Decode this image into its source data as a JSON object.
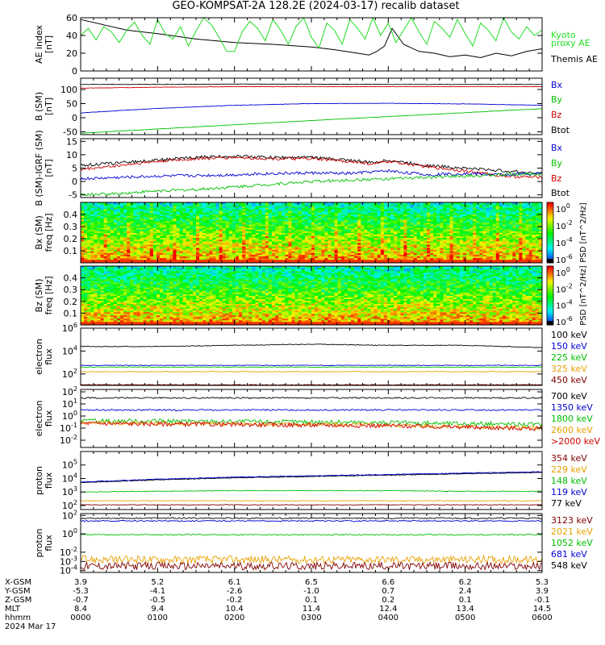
{
  "title": "GEO-KOMPSAT-2A 128.2E (2024-03-17) recalib dataset",
  "colors": {
    "black": "#000000",
    "red": "#d00000",
    "blue": "#0000d0",
    "green": "#00c000",
    "lightgreen": "#22dd22",
    "orange": "#e8a000",
    "darkred": "#800000",
    "mgreen": "#00b000"
  },
  "chart_data": [
    {
      "id": "ae",
      "type": "line",
      "ylabel": [
        "AE index",
        "[nT]"
      ],
      "ylim": [
        0,
        60
      ],
      "yticks": [
        "0",
        "20",
        "40",
        "60"
      ],
      "log": false,
      "legend": [
        {
          "name": "Kyoto proxy AE",
          "lines": [
            "Kyoto",
            "proxy AE"
          ],
          "color": "#22dd22"
        },
        {
          "name": "Themis AE",
          "lines": [
            "Themis AE"
          ],
          "color": "#000000"
        }
      ],
      "series": [
        {
          "name": "Themis AE",
          "color": "#000000",
          "x": [
            0,
            0.3,
            0.6,
            1.0,
            1.5,
            2.0,
            2.5,
            3.0,
            3.3,
            3.6,
            3.75,
            3.85,
            3.95,
            4.05,
            4.2,
            4.4,
            4.6,
            4.8,
            5.0,
            5.2,
            5.4,
            5.6,
            5.8,
            6.0
          ],
          "y": [
            58,
            52,
            46,
            42,
            36,
            32,
            30,
            27,
            24,
            20,
            18,
            22,
            28,
            48,
            30,
            22,
            20,
            16,
            18,
            15,
            20,
            17,
            22,
            25
          ]
        },
        {
          "name": "Kyoto proxy AE",
          "color": "#22dd22",
          "x": [
            0,
            0.1,
            0.2,
            0.3,
            0.4,
            0.5,
            0.6,
            0.7,
            0.8,
            0.9,
            1.0,
            1.1,
            1.2,
            1.3,
            1.4,
            1.5,
            1.6,
            1.7,
            1.8,
            1.9,
            2.0,
            2.1,
            2.2,
            2.3,
            2.4,
            2.5,
            2.6,
            2.7,
            2.8,
            2.9,
            3.0,
            3.1,
            3.2,
            3.3,
            3.4,
            3.5,
            3.6,
            3.7,
            3.8,
            3.9,
            4.0,
            4.1,
            4.2,
            4.3,
            4.4,
            4.5,
            4.6,
            4.7,
            4.8,
            4.9,
            5.0,
            5.1,
            5.2,
            5.3,
            5.4,
            5.5,
            5.6,
            5.7,
            5.8,
            5.9,
            6.0
          ],
          "y": [
            40,
            48,
            35,
            50,
            44,
            32,
            46,
            55,
            40,
            30,
            58,
            42,
            36,
            50,
            28,
            45,
            60,
            52,
            38,
            22,
            22,
            44,
            56,
            48,
            34,
            58,
            46,
            30,
            50,
            60,
            38,
            26,
            54,
            46,
            30,
            58,
            48,
            36,
            60,
            40,
            54,
            32,
            46,
            60,
            44,
            30,
            56,
            48,
            38,
            58,
            42,
            28,
            54,
            46,
            34,
            60,
            44,
            36,
            50,
            40,
            46
          ]
        }
      ]
    },
    {
      "id": "bsm",
      "type": "line",
      "ylabel": [
        "B (SM)",
        "[nT]"
      ],
      "ylim": [
        -60,
        140
      ],
      "yticks": [
        "-50",
        "0",
        "50",
        "100"
      ],
      "log": false,
      "legend": [
        {
          "name": "Bx",
          "lines": [
            "Bx"
          ],
          "color": "#0000d0"
        },
        {
          "name": "By",
          "lines": [
            "By"
          ],
          "color": "#00c000"
        },
        {
          "name": "Bz",
          "lines": [
            "Bz"
          ],
          "color": "#d00000"
        },
        {
          "name": "Btot",
          "lines": [
            "Btot"
          ],
          "color": "#000000"
        }
      ],
      "series": [
        {
          "name": "Btot",
          "color": "#000000",
          "x": [
            0,
            1,
            2,
            3,
            4,
            5,
            6
          ],
          "y": [
            118,
            118,
            119,
            119,
            118,
            118,
            118
          ]
        },
        {
          "name": "Bz",
          "color": "#d00000",
          "x": [
            0,
            1,
            2,
            3,
            4,
            5,
            6
          ],
          "y": [
            105,
            108,
            110,
            110,
            110,
            110,
            110
          ]
        },
        {
          "name": "Bx",
          "color": "#0000d0",
          "x": [
            0,
            1,
            2,
            3,
            4,
            5,
            6
          ],
          "y": [
            17,
            33,
            44,
            50,
            51,
            49,
            44
          ]
        },
        {
          "name": "By",
          "color": "#00c000",
          "x": [
            0,
            1,
            2,
            3,
            4,
            5,
            6
          ],
          "y": [
            -55,
            -40,
            -25,
            -10,
            4,
            18,
            32
          ]
        }
      ]
    },
    {
      "id": "bigrf",
      "type": "line",
      "ylabel": [
        "B (SM)-IGRF (SM)",
        "[nT]"
      ],
      "ylim": [
        -6,
        16
      ],
      "yticks": [
        "-5",
        "0",
        "5",
        "10",
        "15"
      ],
      "log": false,
      "legend": [
        {
          "name": "Bx",
          "lines": [
            "Bx"
          ],
          "color": "#0000d0"
        },
        {
          "name": "By",
          "lines": [
            "By"
          ],
          "color": "#00c000"
        },
        {
          "name": "Bz",
          "lines": [
            "Bz"
          ],
          "color": "#d00000"
        },
        {
          "name": "Btot",
          "lines": [
            "Btot"
          ],
          "color": "#000000"
        }
      ],
      "series": [
        {
          "name": "Btot",
          "color": "#000000",
          "x": [
            0,
            0.5,
            1,
            1.5,
            2,
            2.5,
            3,
            3.5,
            3.8,
            4,
            4.5,
            5,
            5.5,
            6
          ],
          "y": [
            6,
            7,
            8,
            9,
            9.5,
            9,
            9,
            8,
            7,
            8,
            6,
            5,
            4,
            3
          ]
        },
        {
          "name": "Bz",
          "color": "#d00000",
          "x": [
            0,
            0.5,
            1,
            1.5,
            2,
            2.5,
            3,
            3.5,
            3.8,
            4,
            4.5,
            5,
            5.5,
            6
          ],
          "y": [
            4.5,
            6,
            7.5,
            8.5,
            9,
            8.5,
            8.5,
            7.5,
            6.5,
            7.5,
            5.5,
            4,
            2,
            1.5
          ]
        },
        {
          "name": "Bx",
          "color": "#0000d0",
          "x": [
            0,
            0.5,
            1,
            1.5,
            2,
            2.5,
            3,
            3.5,
            4,
            4.5,
            5,
            5.5,
            6
          ],
          "y": [
            1,
            1.5,
            2,
            2.2,
            2.5,
            3,
            3.2,
            3,
            4,
            2.5,
            3,
            2.5,
            3
          ]
        },
        {
          "name": "By",
          "color": "#00c000",
          "x": [
            0,
            0.5,
            1,
            1.5,
            2,
            2.5,
            3,
            3.5,
            4,
            4.5,
            5,
            5.5,
            6
          ],
          "y": [
            -5,
            -4.5,
            -3.5,
            -3,
            -2,
            -1,
            0,
            0.5,
            1,
            1.5,
            2,
            2.5,
            3
          ]
        }
      ]
    },
    {
      "id": "specx",
      "type": "heatmap",
      "ylabel": [
        "Bx (SM)",
        "freq [Hz]"
      ],
      "ylim": [
        0,
        0.5
      ],
      "yticks": [
        "0.1",
        "0.2",
        "0.3",
        "0.4"
      ],
      "colorbar": {
        "label": "PSD [nT^2/Hz]",
        "ticks": [
          "10^0",
          "10^-2",
          "10^-4",
          "10^-6"
        ]
      }
    },
    {
      "id": "specz",
      "type": "heatmap",
      "ylabel": [
        "Bz (SM)",
        "freq [Hz]"
      ],
      "ylim": [
        0,
        0.5
      ],
      "yticks": [
        "0.1",
        "0.2",
        "0.3",
        "0.4"
      ],
      "colorbar": {
        "label": "PSD [nT^2/Hz]",
        "ticks": [
          "10^0",
          "10^-2",
          "10^-4",
          "10^-6"
        ]
      }
    },
    {
      "id": "eflux1",
      "type": "line",
      "ylabel": [
        "electron",
        "flux"
      ],
      "ylim": [
        1,
        6
      ],
      "yticks": [
        "10^2",
        "10^4",
        "10^6"
      ],
      "log": true,
      "legend": [
        {
          "name": "100 keV",
          "lines": [
            "100 keV"
          ],
          "color": "#000000"
        },
        {
          "name": "150 keV",
          "lines": [
            "150 keV"
          ],
          "color": "#0000d0"
        },
        {
          "name": "225 keV",
          "lines": [
            "225 keV"
          ],
          "color": "#00c000"
        },
        {
          "name": "325 keV",
          "lines": [
            "325 keV"
          ],
          "color": "#e8a000"
        },
        {
          "name": "450 keV",
          "lines": [
            "450 keV"
          ],
          "color": "#800000"
        }
      ],
      "series": [
        {
          "name": "100 keV",
          "color": "#000000",
          "x": [
            0,
            1,
            2,
            3,
            4,
            5,
            6
          ],
          "y": [
            4.4,
            4.4,
            4.5,
            4.6,
            4.5,
            4.5,
            4.3
          ]
        },
        {
          "name": "150 keV",
          "color": "#0000d0",
          "x": [
            0,
            6
          ],
          "y": [
            2.75,
            2.75
          ]
        },
        {
          "name": "225 keV",
          "color": "#00c000",
          "x": [
            0,
            6
          ],
          "y": [
            2.6,
            2.6
          ]
        },
        {
          "name": "325 keV",
          "color": "#e8a000",
          "x": [
            0,
            6
          ],
          "y": [
            2.2,
            2.2
          ]
        },
        {
          "name": "450 keV",
          "color": "#800000",
          "x": [
            0,
            6
          ],
          "y": [
            1.05,
            1.05
          ]
        }
      ]
    },
    {
      "id": "eflux2",
      "type": "line",
      "ylabel": [
        "electron",
        "flux"
      ],
      "ylim": [
        -2.6,
        2.2
      ],
      "yticks": [
        "10^-2",
        "10^-1",
        "10^0",
        "10^1",
        "10^2"
      ],
      "log": true,
      "legend": [
        {
          "name": "700 keV",
          "lines": [
            "700 keV"
          ],
          "color": "#000000"
        },
        {
          "name": "1350 keV",
          "lines": [
            "1350 keV"
          ],
          "color": "#0000d0"
        },
        {
          "name": "1800 keV",
          "lines": [
            "1800 keV"
          ],
          "color": "#00c000"
        },
        {
          "name": "2600 keV",
          "lines": [
            "2600 keV"
          ],
          "color": "#e8a000"
        },
        {
          "name": ">2000 keV",
          "lines": [
            ">2000 keV"
          ],
          "color": "#d00000"
        }
      ],
      "series": [
        {
          "name": "700 keV",
          "color": "#000000",
          "x": [
            0,
            6
          ],
          "y": [
            1.5,
            1.5
          ]
        },
        {
          "name": "1350 keV",
          "color": "#0000d0",
          "x": [
            0,
            6
          ],
          "y": [
            0.5,
            0.5
          ]
        },
        {
          "name": "1800 keV",
          "color": "#00c000",
          "x": [
            0,
            2,
            4,
            6
          ],
          "y": [
            -0.4,
            -0.45,
            -0.55,
            -0.7
          ]
        },
        {
          "name": "2600 keV",
          "color": "#e8a000",
          "x": [
            0,
            2,
            4,
            6
          ],
          "y": [
            -0.55,
            -0.65,
            -0.75,
            -1.0
          ]
        },
        {
          "name": ">2000 keV",
          "color": "#d00000",
          "x": [
            0,
            2,
            4,
            6
          ],
          "y": [
            -0.6,
            -0.7,
            -0.8,
            -1.05
          ]
        }
      ]
    },
    {
      "id": "pflux1",
      "type": "line",
      "ylabel": [
        "proton",
        "flux"
      ],
      "ylim": [
        1.7,
        6
      ],
      "yticks": [
        "10^2",
        "10^3",
        "10^4",
        "10^5"
      ],
      "log": true,
      "legend": [
        {
          "name": "354 keV",
          "lines": [
            "354 keV"
          ],
          "color": "#800000"
        },
        {
          "name": "229 keV",
          "lines": [
            "229 keV"
          ],
          "color": "#e8a000"
        },
        {
          "name": "148 keV",
          "lines": [
            "148 keV"
          ],
          "color": "#00c000"
        },
        {
          "name": "119 keV",
          "lines": [
            "119 keV"
          ],
          "color": "#0000d0"
        },
        {
          "name": "77 keV",
          "lines": [
            "77 keV"
          ],
          "color": "#000000"
        }
      ],
      "series": [
        {
          "name": "77 keV",
          "color": "#000000",
          "x": [
            0,
            1,
            2,
            3,
            4,
            5,
            6
          ],
          "y": [
            3.7,
            3.9,
            4.05,
            4.15,
            4.25,
            4.35,
            4.45
          ]
        },
        {
          "name": "119 keV",
          "color": "#0000d0",
          "x": [
            0,
            1,
            2,
            3,
            4,
            5,
            6
          ],
          "y": [
            3.75,
            3.95,
            4.1,
            4.2,
            4.3,
            4.4,
            4.5
          ]
        },
        {
          "name": "148 keV",
          "color": "#00c000",
          "x": [
            0,
            1,
            2,
            3,
            4,
            5,
            6
          ],
          "y": [
            3.0,
            3.05,
            3.1,
            3.1,
            3.1,
            3.05,
            3.05
          ]
        },
        {
          "name": "229 keV",
          "color": "#e8a000",
          "x": [
            0,
            6
          ],
          "y": [
            2.35,
            2.35
          ]
        },
        {
          "name": "354 keV",
          "color": "#800000",
          "x": [
            0,
            6
          ],
          "y": [
            2.05,
            2.05
          ]
        }
      ]
    },
    {
      "id": "pflux2",
      "type": "line",
      "ylabel": [
        "proton",
        "flux"
      ],
      "ylim": [
        -4.2,
        2.2
      ],
      "yticks": [
        "10^-4",
        "10^-3",
        "10^-2",
        "10^0",
        "10^2"
      ],
      "log": true,
      "legend": [
        {
          "name": "3123 keV",
          "lines": [
            "3123 keV"
          ],
          "color": "#800000"
        },
        {
          "name": "2021 keV",
          "lines": [
            "2021 keV"
          ],
          "color": "#e8a000"
        },
        {
          "name": "1052 keV",
          "lines": [
            "1052 keV"
          ],
          "color": "#00c000"
        },
        {
          "name": "681 keV",
          "lines": [
            "681 keV"
          ],
          "color": "#0000d0"
        },
        {
          "name": "548 keV",
          "lines": [
            "548 keV"
          ],
          "color": "#000000"
        }
      ],
      "series": [
        {
          "name": "548 keV",
          "color": "#000000",
          "x": [
            0,
            6
          ],
          "y": [
            1.7,
            1.7
          ]
        },
        {
          "name": "681 keV",
          "color": "#0000d0",
          "x": [
            0,
            6
          ],
          "y": [
            1.4,
            1.4
          ]
        },
        {
          "name": "1052 keV",
          "color": "#00c000",
          "x": [
            0,
            6
          ],
          "y": [
            -0.1,
            -0.1
          ]
        },
        {
          "name": "2021 keV",
          "color": "#e8a000",
          "x": [
            0,
            6
          ],
          "y": [
            -2.8,
            -2.8
          ]
        },
        {
          "name": "3123 keV",
          "color": "#800000",
          "x": [
            0,
            6
          ],
          "y": [
            -3.5,
            -3.5
          ]
        }
      ]
    }
  ],
  "xaxis": {
    "range": [
      0,
      6
    ],
    "row_labels": [
      "X-GSM",
      "Y-GSM",
      "Z-GSM",
      "MLT",
      "hhmm",
      "2024 Mar 17"
    ],
    "rows": [
      [
        "3.9",
        "5.2",
        "6.1",
        "6.5",
        "6.6",
        "6.2",
        "5.3"
      ],
      [
        "-5.3",
        "-4.1",
        "-2.6",
        "-1.0",
        "0.7",
        "2.4",
        "3.9"
      ],
      [
        "-0.7",
        "-0.5",
        "-0.2",
        "0.1",
        "0.2",
        "0.1",
        "-0.1"
      ],
      [
        "8.4",
        "9.4",
        "10.4",
        "11.4",
        "12.4",
        "13.4",
        "14.5"
      ],
      [
        "0000",
        "0100",
        "0200",
        "0300",
        "0400",
        "0500",
        "0600"
      ]
    ]
  }
}
